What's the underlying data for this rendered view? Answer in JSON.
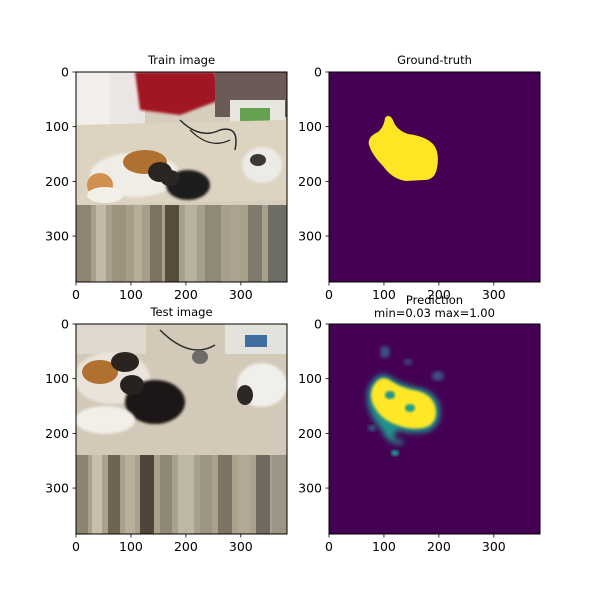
{
  "figure": {
    "background": "#ffffff"
  },
  "chart_data": [
    {
      "type": "image",
      "title": "Train image",
      "xlim": [
        0,
        384
      ],
      "ylim": [
        384,
        0
      ],
      "xticks": [
        0,
        100,
        200,
        300
      ],
      "yticks": [
        0,
        100,
        200,
        300
      ],
      "content": "photo of calico cat and kittens on a rug"
    },
    {
      "type": "heatmap",
      "title": "Ground-truth",
      "xlim": [
        0,
        384
      ],
      "ylim": [
        384,
        0
      ],
      "xticks": [
        0,
        100,
        200,
        300
      ],
      "yticks": [
        0,
        100,
        200,
        300
      ],
      "colormap": "viridis",
      "colors": {
        "low": "#440154",
        "high": "#fde725"
      }
    },
    {
      "type": "image",
      "title": "Test image",
      "xlim": [
        0,
        384
      ],
      "ylim": [
        384,
        0
      ],
      "xticks": [
        0,
        100,
        200,
        300
      ],
      "yticks": [
        0,
        100,
        200,
        300
      ],
      "content": "photo of calico cat and kittens on a rug (cropped)"
    },
    {
      "type": "heatmap",
      "title": "Prediction",
      "subtitle": "min=0.03 max=1.00",
      "min": 0.03,
      "max": 1.0,
      "xlim": [
        0,
        384
      ],
      "ylim": [
        384,
        0
      ],
      "xticks": [
        0,
        100,
        200,
        300
      ],
      "yticks": [
        0,
        100,
        200,
        300
      ],
      "colormap": "viridis",
      "colors": {
        "low": "#440154",
        "mid": "#21918c",
        "high": "#fde725"
      }
    }
  ]
}
